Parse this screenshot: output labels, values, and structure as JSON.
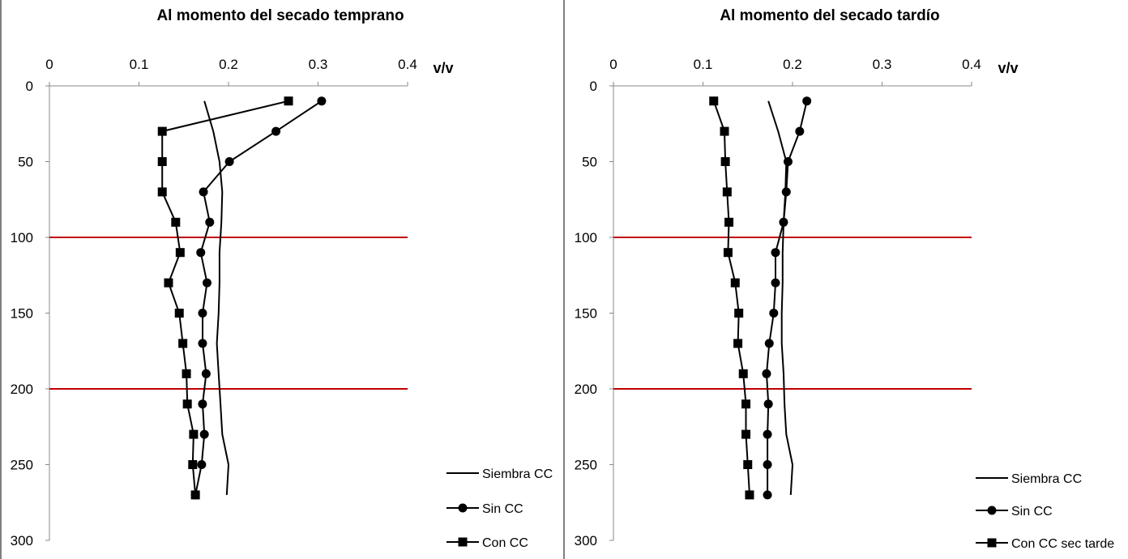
{
  "chart_data": [
    {
      "type": "line",
      "title": "Al momento del secado temprano",
      "xlabel": "v/v",
      "ylabel": "",
      "xlim": [
        0,
        0.4
      ],
      "ylim": [
        0,
        300
      ],
      "y_reversed": true,
      "x_axis_position": "top",
      "x_ticks": [
        "0",
        "0.1",
        "0.2",
        "0.3",
        "0.4"
      ],
      "y_ticks": [
        "0",
        "50",
        "100",
        "150",
        "200",
        "250",
        "300"
      ],
      "reference_lines": [
        {
          "y": 100,
          "color": "#c00000"
        },
        {
          "y": 200,
          "color": "#c00000"
        }
      ],
      "legend_position": "bottom-right",
      "series": [
        {
          "name": "Siembra CC",
          "marker": "none",
          "points": [
            [
              0.173,
              10
            ],
            [
              0.183,
              30
            ],
            [
              0.19,
              50
            ],
            [
              0.193,
              70
            ],
            [
              0.192,
              90
            ],
            [
              0.19,
              110
            ],
            [
              0.19,
              130
            ],
            [
              0.189,
              150
            ],
            [
              0.187,
              170
            ],
            [
              0.189,
              190
            ],
            [
              0.191,
              210
            ],
            [
              0.193,
              230
            ],
            [
              0.2,
              250
            ],
            [
              0.198,
              270
            ]
          ]
        },
        {
          "name": "Sin CC",
          "marker": "circle",
          "points": [
            [
              0.304,
              10
            ],
            [
              0.253,
              30
            ],
            [
              0.201,
              50
            ],
            [
              0.172,
              70
            ],
            [
              0.179,
              90
            ],
            [
              0.169,
              110
            ],
            [
              0.176,
              130
            ],
            [
              0.171,
              150
            ],
            [
              0.171,
              170
            ],
            [
              0.175,
              190
            ],
            [
              0.171,
              210
            ],
            [
              0.173,
              230
            ],
            [
              0.17,
              250
            ],
            [
              0.163,
              270
            ]
          ]
        },
        {
          "name": "Con CC",
          "marker": "square",
          "points": [
            [
              0.267,
              10
            ],
            [
              0.126,
              30
            ],
            [
              0.126,
              50
            ],
            [
              0.126,
              70
            ],
            [
              0.141,
              90
            ],
            [
              0.146,
              110
            ],
            [
              0.133,
              130
            ],
            [
              0.145,
              150
            ],
            [
              0.149,
              170
            ],
            [
              0.153,
              190
            ],
            [
              0.154,
              210
            ],
            [
              0.161,
              230
            ],
            [
              0.16,
              250
            ],
            [
              0.163,
              270
            ]
          ]
        }
      ]
    },
    {
      "type": "line",
      "title": "Al momento del secado tardío",
      "xlabel": "v/v",
      "ylabel": "",
      "xlim": [
        0,
        0.4
      ],
      "ylim": [
        0,
        300
      ],
      "y_reversed": true,
      "x_axis_position": "top",
      "x_ticks": [
        "0",
        "0.1",
        "0.2",
        "0.3",
        "0.4"
      ],
      "y_ticks": [
        "0",
        "50",
        "100",
        "150",
        "200",
        "250",
        "300"
      ],
      "reference_lines": [
        {
          "y": 100,
          "color": "#c00000"
        },
        {
          "y": 200,
          "color": "#c00000"
        }
      ],
      "legend_position": "bottom-right",
      "series": [
        {
          "name": "Siembra CC",
          "marker": "none",
          "points": [
            [
              0.173,
              10
            ],
            [
              0.184,
              30
            ],
            [
              0.193,
              50
            ],
            [
              0.192,
              70
            ],
            [
              0.19,
              90
            ],
            [
              0.189,
              110
            ],
            [
              0.189,
              130
            ],
            [
              0.188,
              150
            ],
            [
              0.188,
              170
            ],
            [
              0.19,
              190
            ],
            [
              0.191,
              210
            ],
            [
              0.193,
              230
            ],
            [
              0.2,
              250
            ],
            [
              0.198,
              270
            ]
          ]
        },
        {
          "name": "Sin CC",
          "marker": "circle",
          "points": [
            [
              0.216,
              10
            ],
            [
              0.208,
              30
            ],
            [
              0.195,
              50
            ],
            [
              0.193,
              70
            ],
            [
              0.19,
              90
            ],
            [
              0.181,
              110
            ],
            [
              0.181,
              130
            ],
            [
              0.179,
              150
            ],
            [
              0.174,
              170
            ],
            [
              0.171,
              190
            ],
            [
              0.173,
              210
            ],
            [
              0.172,
              230
            ],
            [
              0.172,
              250
            ],
            [
              0.172,
              270
            ]
          ]
        },
        {
          "name": "Con CC sec tarde",
          "marker": "square",
          "points": [
            [
              0.112,
              10
            ],
            [
              0.124,
              30
            ],
            [
              0.125,
              50
            ],
            [
              0.127,
              70
            ],
            [
              0.129,
              90
            ],
            [
              0.128,
              110
            ],
            [
              0.136,
              130
            ],
            [
              0.14,
              150
            ],
            [
              0.139,
              170
            ],
            [
              0.145,
              190
            ],
            [
              0.148,
              210
            ],
            [
              0.148,
              230
            ],
            [
              0.15,
              250
            ],
            [
              0.152,
              270
            ]
          ]
        }
      ]
    }
  ]
}
